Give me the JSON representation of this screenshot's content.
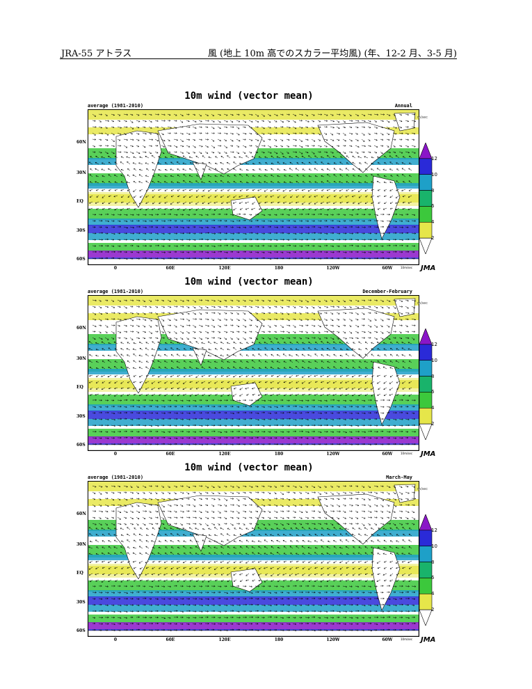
{
  "header": {
    "left": "JRA-55 アトラス",
    "right": "風 (地上 10m 高でのスカラー平均風) (年、12-2 月、3-5 月)"
  },
  "colorbar": {
    "levels": [
      "12",
      "10",
      "8",
      "6",
      "4",
      "2"
    ],
    "colors": [
      "#8a16c8",
      "#2a2ad8",
      "#1ea0c8",
      "#19b36b",
      "#3cc83c",
      "#e6e64a",
      "#ffffff"
    ]
  },
  "axes": {
    "y_ticks": [
      "60N",
      "30N",
      "EQ",
      "30S",
      "60S"
    ],
    "x_ticks": [
      "0",
      "60E",
      "120E",
      "180",
      "120W",
      "60W"
    ]
  },
  "panels": [
    {
      "title": "10m wind (vector mean)",
      "subtitle_left": "average (1981-2010)",
      "subtitle_right": "Annual",
      "unit": "m/sec",
      "ref": "10m/sec",
      "logo": "JMA"
    },
    {
      "title": "10m wind (vector mean)",
      "subtitle_left": "average (1981-2010)",
      "subtitle_right": "December-February",
      "unit": "m/sec",
      "ref": "10m/sec",
      "logo": "JMA"
    },
    {
      "title": "10m wind (vector mean)",
      "subtitle_left": "average (1981-2010)",
      "subtitle_right": "March-May",
      "unit": "m/sec",
      "ref": "10m/sec",
      "logo": "JMA"
    }
  ]
}
